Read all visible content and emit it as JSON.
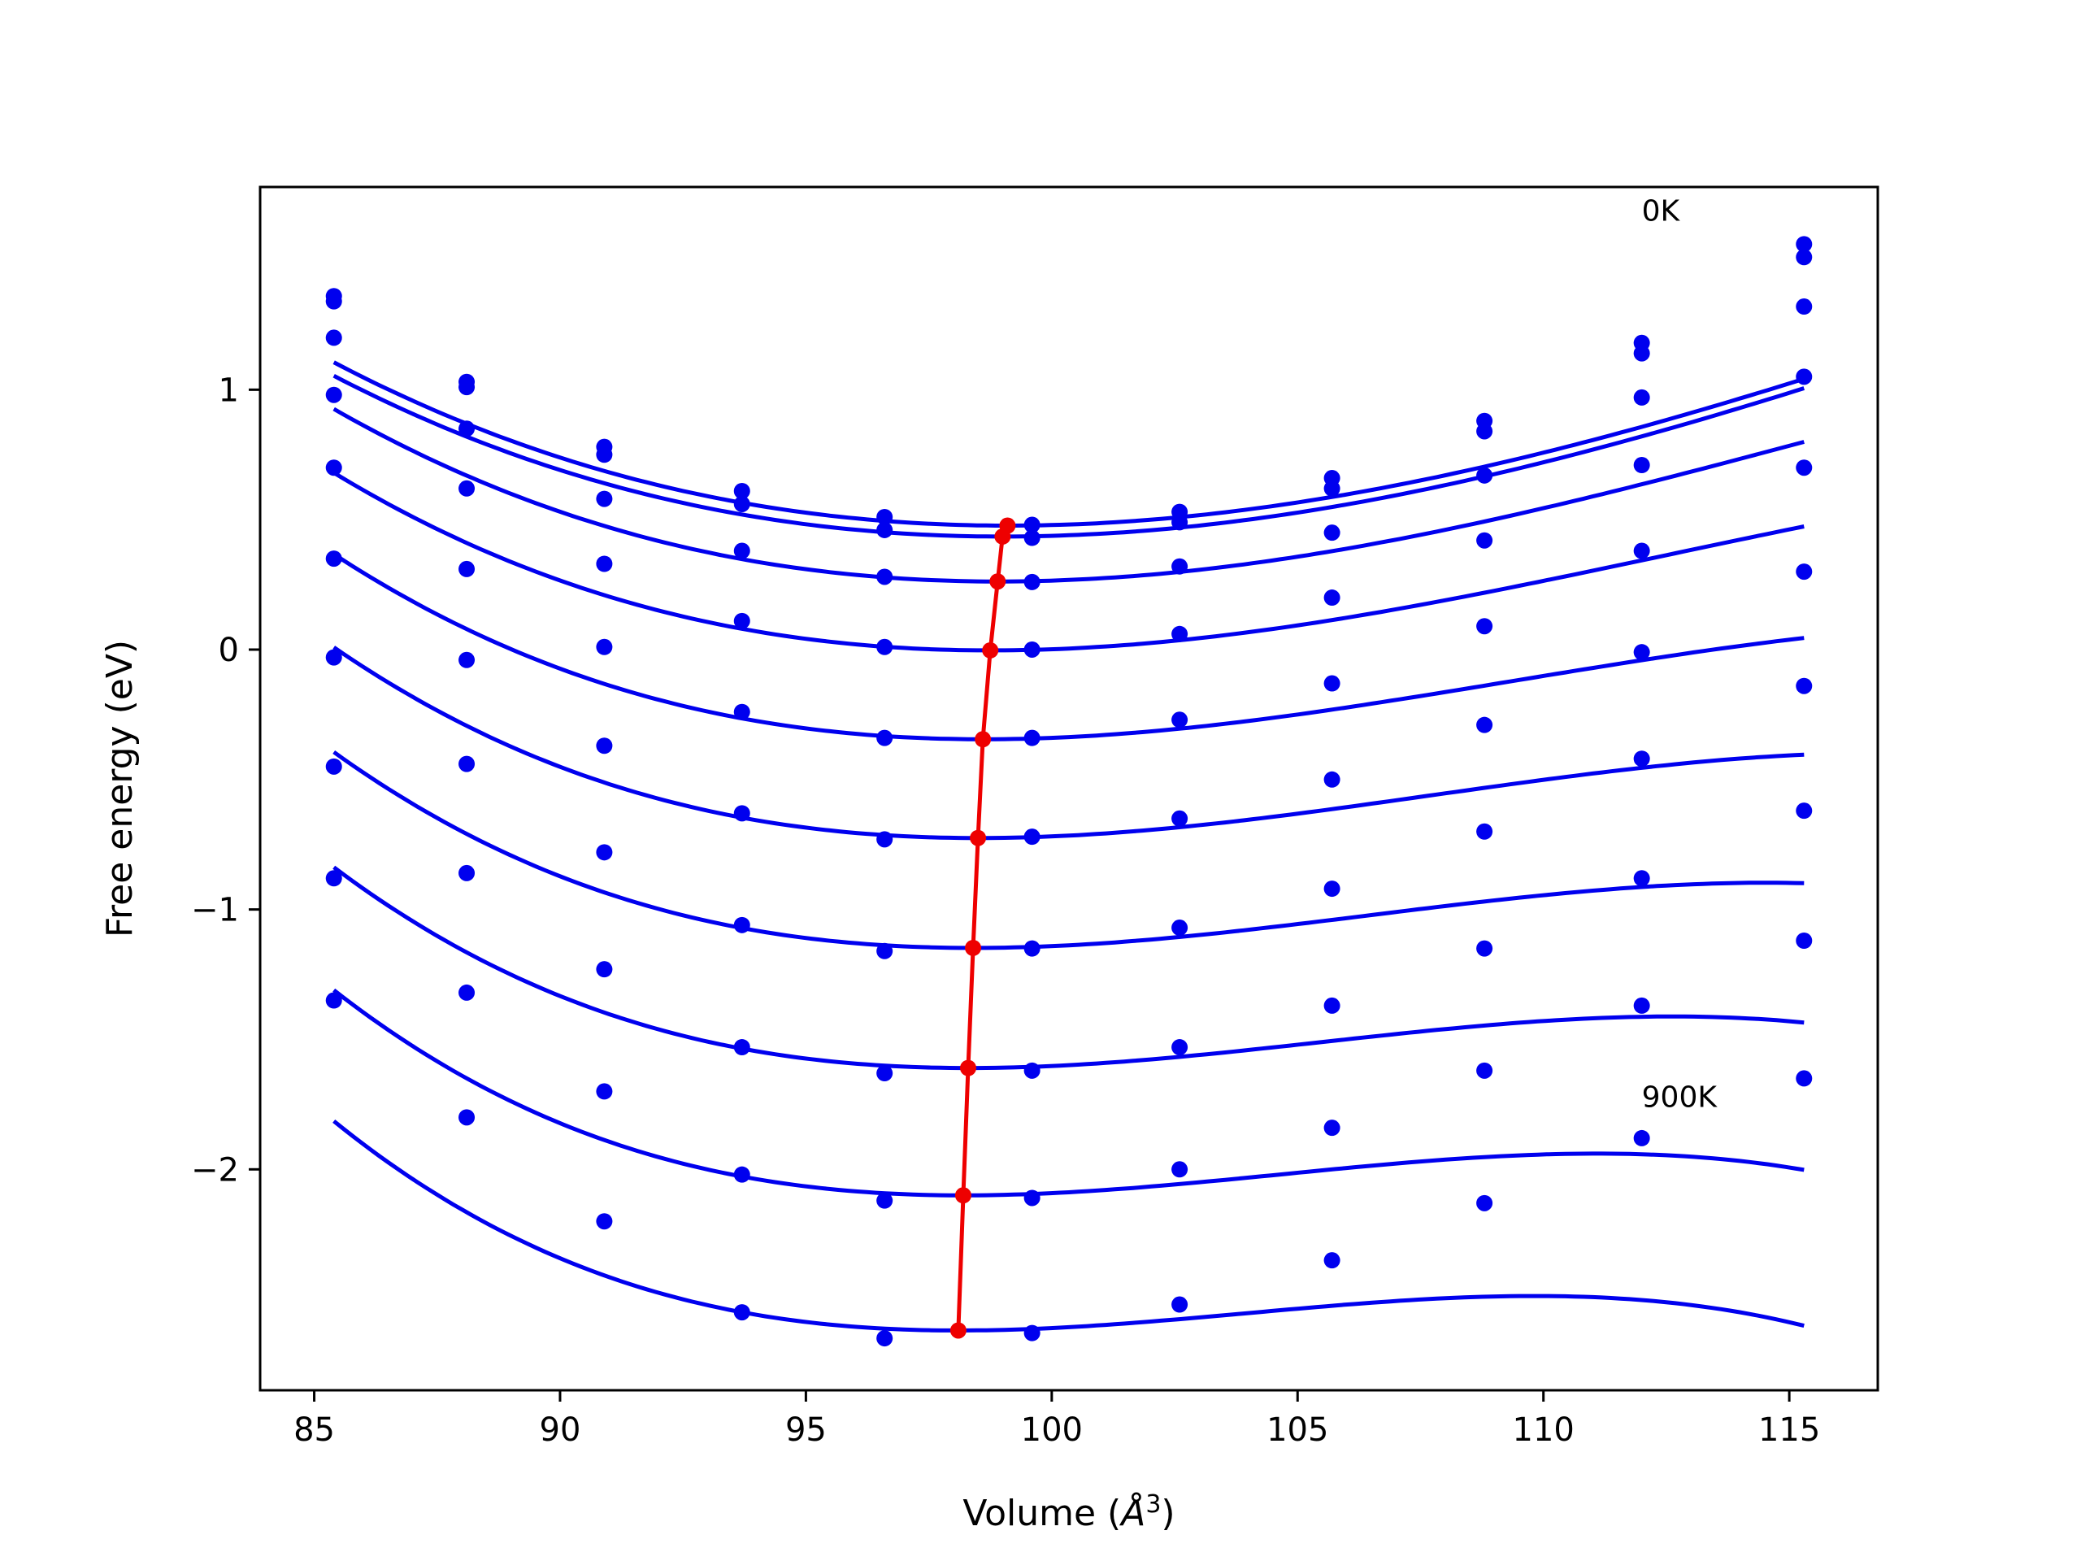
{
  "chart_data": {
    "type": "line",
    "title": "",
    "xlabel": "Volume (",
    "xlabel_unit": "Å",
    "xlabel_exp": "3",
    "xlabel_close": ")",
    "ylabel": "Free energy (eV)",
    "xlim": [
      83.9,
      116.8
    ],
    "ylim": [
      -2.85,
      1.78
    ],
    "xticks": [
      85,
      90,
      95,
      100,
      105,
      110,
      115
    ],
    "yticks": [
      -2,
      -1,
      0,
      1
    ],
    "ytick_labels": [
      "−2",
      "−1",
      "0",
      "1"
    ],
    "grid": false,
    "legend": "none",
    "colors": {
      "curves": "#0000ee",
      "minimum_path": "#ee0000",
      "axes": "#000000"
    },
    "annotations": [
      {
        "text": "0K",
        "x": 112.0,
        "y": 1.65
      },
      {
        "text": "900K",
        "x": 112.0,
        "y": -1.76
      }
    ],
    "volumes": [
      85.4,
      88.1,
      90.9,
      93.7,
      96.6,
      99.6,
      102.6,
      105.7,
      108.8,
      112.0,
      115.3
    ],
    "series": [
      {
        "points": [
          1.36,
          1.03,
          0.78,
          0.61,
          0.51,
          0.48,
          0.53,
          0.66,
          0.88,
          1.18,
          1.56
        ],
        "fit": {
          "v0": 99.1,
          "e0": 0.477,
          "a": 0.0028,
          "b": 4e-05
        },
        "min": [
          99.1,
          0.477
        ]
      },
      {
        "points": [
          1.34,
          1.01,
          0.75,
          0.56,
          0.46,
          0.43,
          0.49,
          0.62,
          0.84,
          1.14,
          1.51
        ],
        "fit": {
          "v0": 99.0,
          "e0": 0.435,
          "a": 0.0028,
          "b": 4e-05
        },
        "min": [
          99.0,
          0.435
        ]
      },
      {
        "points": [
          1.2,
          0.85,
          0.58,
          0.38,
          0.28,
          0.26,
          0.32,
          0.45,
          0.67,
          0.97,
          1.32
        ],
        "fit": {
          "v0": 98.9,
          "e0": 0.262,
          "a": 0.0029,
          "b": 5.5e-05
        },
        "min": [
          98.9,
          0.262
        ]
      },
      {
        "points": [
          0.98,
          0.62,
          0.33,
          0.11,
          0.01,
          0.0,
          0.06,
          0.2,
          0.42,
          0.71,
          1.05
        ],
        "fit": {
          "v0": 98.75,
          "e0": -0.003,
          "a": 0.0029,
          "b": 7e-05
        },
        "min": [
          98.75,
          -0.003
        ]
      },
      {
        "points": [
          0.7,
          0.31,
          0.01,
          -0.24,
          -0.34,
          -0.34,
          -0.27,
          -0.13,
          0.09,
          0.38,
          0.7
        ],
        "fit": {
          "v0": 98.6,
          "e0": -0.345,
          "a": 0.0029,
          "b": 9e-05
        },
        "min": [
          98.6,
          -0.345
        ]
      },
      {
        "points": [
          0.35,
          -0.04,
          -0.37,
          -0.63,
          -0.73,
          -0.72,
          -0.65,
          -0.5,
          -0.29,
          -0.01,
          0.3
        ],
        "fit": {
          "v0": 98.5,
          "e0": -0.725,
          "a": 0.0029,
          "b": 0.000105
        },
        "min": [
          98.5,
          -0.725
        ]
      },
      {
        "points": [
          -0.03,
          -0.44,
          -0.78,
          -1.06,
          -1.16,
          -1.15,
          -1.07,
          -0.92,
          -0.7,
          -0.42,
          -0.14
        ],
        "fit": {
          "v0": 98.4,
          "e0": -1.148,
          "a": 0.0029,
          "b": 0.00012
        },
        "min": [
          98.4,
          -1.148
        ]
      },
      {
        "points": [
          -0.45,
          -0.86,
          -1.23,
          -1.53,
          -1.63,
          -1.62,
          -1.53,
          -1.37,
          -1.15,
          -0.88,
          -0.62
        ],
        "fit": {
          "v0": 98.3,
          "e0": -1.61,
          "a": 0.0029,
          "b": 0.000135
        },
        "min": [
          98.3,
          -1.61
        ]
      },
      {
        "points": [
          -0.88,
          -1.32,
          -1.7,
          -2.02,
          -2.12,
          -2.11,
          -2.0,
          -1.84,
          -1.62,
          -1.37,
          -1.12
        ],
        "fit": {
          "v0": 98.2,
          "e0": -2.1,
          "a": 0.0029,
          "b": 0.00015
        },
        "min": [
          98.2,
          -2.1
        ]
      },
      {
        "points": [
          -1.35,
          -1.8,
          -2.2,
          -2.55,
          -2.65,
          -2.63,
          -2.52,
          -2.35,
          -2.13,
          -1.88,
          -1.65
        ],
        "fit": {
          "v0": 98.1,
          "e0": -2.62,
          "a": 0.0029,
          "b": 0.000165
        },
        "min": [
          98.1,
          -2.62
        ]
      }
    ]
  }
}
